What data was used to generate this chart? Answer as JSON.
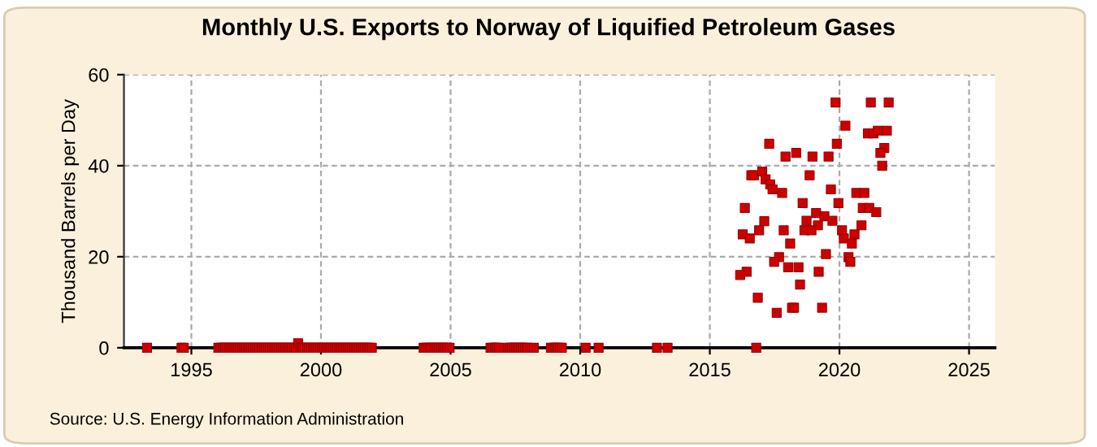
{
  "chart_data": {
    "type": "scatter",
    "title": "Monthly U.S. Exports to Norway of Liquified Petroleum Gases",
    "ylabel": "Thousand Barrels per Day",
    "annotations": [
      "Source: U.S. Energy Information Administration"
    ],
    "xlim": [
      1992.4,
      2026
    ],
    "xticks": [
      1995,
      2000,
      2005,
      2010,
      2015,
      2020,
      2025
    ],
    "ylim": [
      0,
      60
    ],
    "yticks": [
      0,
      20,
      40,
      60
    ],
    "grid": true,
    "marker": "square",
    "legend": false,
    "series": [
      {
        "color": "#cc0000",
        "x": [
          1993.29,
          1994.62,
          1994.71,
          1996.04,
          1996.12,
          1996.21,
          1996.29,
          1996.37,
          1996.46,
          1996.54,
          1996.62,
          1996.71,
          1996.79,
          1996.87,
          1996.96,
          1997.04,
          1997.12,
          1997.21,
          1997.29,
          1997.37,
          1997.46,
          1997.54,
          1997.62,
          1997.71,
          1997.79,
          1997.87,
          1997.96,
          1998.04,
          1998.12,
          1998.21,
          1998.29,
          1998.37,
          1998.46,
          1998.54,
          1998.62,
          1998.71,
          1998.79,
          1998.87,
          1998.96,
          1999.04,
          1999.12,
          1999.21,
          1999.29,
          1999.37,
          1999.46,
          1999.54,
          1999.62,
          1999.71,
          1999.79,
          1999.87,
          1999.96,
          2000.04,
          2000.12,
          2000.21,
          2000.29,
          2000.37,
          2000.46,
          2000.54,
          2000.62,
          2000.71,
          2000.79,
          2000.87,
          2000.96,
          2001.04,
          2001.12,
          2001.21,
          2001.29,
          2001.37,
          2001.46,
          2001.54,
          2001.62,
          2001.71,
          2001.79,
          2001.87,
          2001.96,
          2003.96,
          2004.04,
          2004.12,
          2004.21,
          2004.29,
          2004.37,
          2004.46,
          2004.54,
          2004.62,
          2004.71,
          2004.79,
          2004.87,
          2004.96,
          2006.54,
          2006.62,
          2006.71,
          2006.79,
          2006.87,
          2007.21,
          2007.29,
          2007.37,
          2007.46,
          2007.54,
          2007.62,
          2007.71,
          2007.79,
          2007.87,
          2007.96,
          2008.21,
          2008.87,
          2008.96,
          2009.04,
          2009.12,
          2009.21,
          2009.29,
          2010.21,
          2010.71,
          2012.96,
          2013.37,
          2016.79,
          2019.85,
          2021.21,
          2021.9,
          2020.23,
          2021.1,
          2021.31,
          2021.48,
          2021.83,
          2017.29,
          2019.9,
          2021.73,
          2021.58,
          2017.92,
          2018.33,
          2018.96,
          2019.58,
          2021.65,
          2016.6,
          2016.7,
          2017.02,
          2017.15,
          2017.33,
          2017.42,
          2017.79,
          2018.85,
          2019.67,
          2020.65,
          2020.96,
          2016.35,
          2018.58,
          2019.96,
          2020.9,
          2021.15,
          2021.42,
          2019.1,
          2019.42,
          2018.73,
          2019.73,
          2017.1,
          2019.17,
          2020.85,
          2016.27,
          2016.9,
          2017.85,
          2018.65,
          2018.92,
          2020.1,
          2020.58,
          2016.54,
          2020.17,
          2018.1,
          2020.48,
          2019.48,
          2020.35,
          2020.42,
          2017.67,
          2017.48,
          2016.42,
          2016.17,
          2018.02,
          2018.42,
          2019.2,
          2018.48,
          2016.85,
          2017.58,
          2018.17,
          2018.25,
          2019.33
        ],
        "values": [
          0,
          0,
          0,
          0,
          0,
          0,
          0,
          0,
          0,
          0,
          0,
          0,
          0,
          0,
          0,
          0,
          0,
          0,
          0,
          0,
          0,
          0,
          0,
          0,
          0,
          0,
          0,
          0,
          0,
          0,
          0,
          0,
          0,
          0,
          0,
          0,
          0,
          0,
          0,
          0,
          1,
          0,
          0,
          0,
          0,
          0,
          0,
          0,
          0,
          0,
          0,
          0,
          0,
          0,
          0,
          0,
          0,
          0,
          0,
          0,
          0,
          0,
          0,
          0,
          0,
          0,
          0,
          0,
          0,
          0,
          0,
          0,
          0,
          0,
          0,
          0,
          0,
          0,
          0,
          0,
          0,
          0,
          0,
          0,
          0,
          0,
          0,
          0,
          0,
          0,
          0,
          0,
          0,
          0,
          0,
          0,
          0,
          0,
          0,
          0,
          0,
          0,
          0,
          0,
          0,
          0,
          0,
          0,
          0,
          0,
          0,
          0,
          0,
          0,
          0,
          53.9,
          53.9,
          53.9,
          48.8,
          47.1,
          47.1,
          47.7,
          47.7,
          44.8,
          44.8,
          43.9,
          42.8,
          42,
          42.8,
          42,
          42,
          40,
          37.9,
          37.9,
          38.7,
          37,
          35.9,
          34.8,
          34,
          37.9,
          34.8,
          34,
          34,
          30.7,
          31.8,
          31.8,
          30.7,
          30.7,
          29.8,
          29.6,
          28.9,
          27.9,
          27.9,
          27.8,
          26.9,
          26.9,
          24.9,
          25.8,
          25.8,
          25.8,
          25.8,
          25.8,
          24.9,
          24,
          24,
          22.9,
          22.9,
          20.6,
          19.9,
          18.9,
          19.9,
          18.9,
          16.7,
          16,
          17.7,
          17.7,
          16.7,
          13.9,
          11,
          7.7,
          8.8,
          8.8,
          8.8
        ]
      }
    ]
  }
}
